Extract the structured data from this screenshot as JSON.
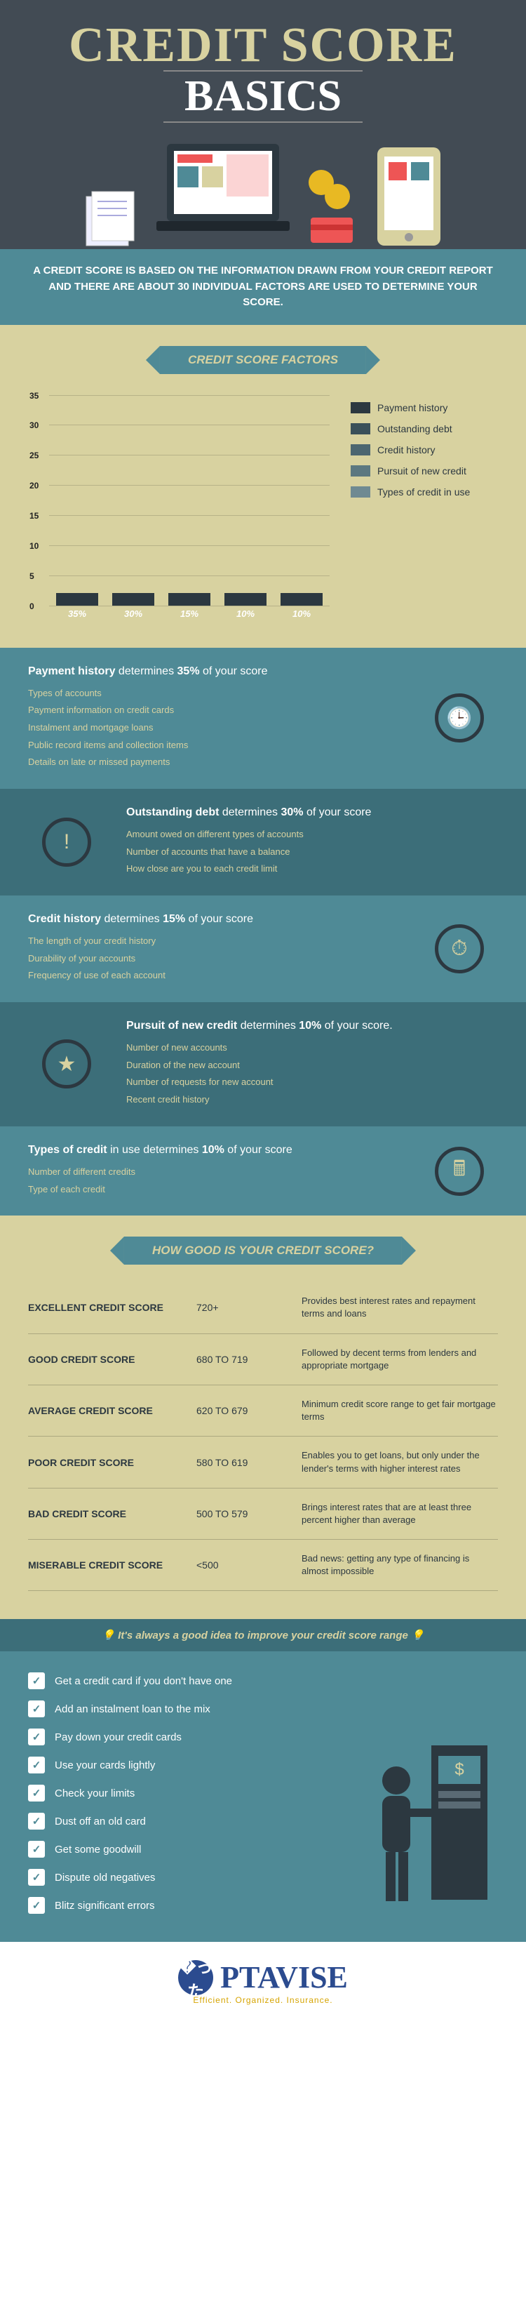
{
  "header": {
    "title1": "CREDIT SCORE",
    "title2": "BASICS"
  },
  "intro": "A CREDIT SCORE IS BASED ON THE INFORMATION DRAWN FROM YOUR CREDIT REPORT AND THERE ARE ABOUT 30 INDIVIDUAL FACTORS ARE USED TO DETERMINE YOUR SCORE.",
  "colors": {
    "bg_dark": "#424b54",
    "teal": "#4f8a96",
    "teal_dark": "#3c6e79",
    "khaki": "#d8d2a0",
    "bar_top": "#2c3840",
    "bar_body": "#2f4a52"
  },
  "chart": {
    "title": "CREDIT SCORE FACTORS",
    "type": "bar",
    "ylim": [
      0,
      35
    ],
    "ytick_step": 5,
    "yticks": [
      "0",
      "5",
      "10",
      "15",
      "20",
      "25",
      "30",
      "35"
    ],
    "values": [
      35,
      30,
      15,
      10,
      10
    ],
    "labels": [
      "35%",
      "30%",
      "15%",
      "10%",
      "10%"
    ],
    "legend": [
      "Payment history",
      "Outstanding debt",
      "Credit history",
      "Pursuit of new credit",
      "Types of credit in use"
    ],
    "legend_colors": [
      "#2c3840",
      "#3a5059",
      "#4c6670",
      "#5c7880",
      "#6f8a92"
    ]
  },
  "factors": [
    {
      "side": "right",
      "icon": "🕒",
      "head_a": "Payment history",
      "head_b": " determines ",
      "head_c": "35%",
      "head_d": " of your score",
      "items": [
        "Types of accounts",
        "Payment information on credit cards",
        "Instalment and mortgage loans",
        "Public record items and collection items",
        "Details on late or missed payments"
      ]
    },
    {
      "side": "left",
      "alt": true,
      "icon": "!",
      "head_a": "Outstanding debt",
      "head_b": " determines ",
      "head_c": "30%",
      "head_d": " of your score",
      "items": [
        "Amount owed on different types of accounts",
        "Number of accounts that have a balance",
        "How close are you to each credit limit"
      ]
    },
    {
      "side": "right",
      "icon": "⏱",
      "head_a": "Credit history",
      "head_b": " determines ",
      "head_c": "15%",
      "head_d": " of your score",
      "items": [
        "The length of your credit history",
        "Durability of your accounts",
        "Frequency of use of each account"
      ]
    },
    {
      "side": "left",
      "alt": true,
      "icon": "★",
      "head_a": "Pursuit of new credit",
      "head_b": " determines ",
      "head_c": "10%",
      "head_d": " of your score.",
      "items": [
        "Number of new accounts",
        "Duration of the new account",
        "Number of requests for new account",
        "Recent credit history"
      ]
    },
    {
      "side": "right",
      "icon": "🖩",
      "head_a": "Types of credit",
      "head_b": " in use determines ",
      "head_c": "10%",
      "head_d": " of your score",
      "items": [
        "Number of different credits",
        "Type of each credit"
      ]
    }
  ],
  "scoretable": {
    "title": "HOW GOOD IS YOUR CREDIT SCORE?",
    "rows": [
      {
        "label": "EXCELLENT CREDIT SCORE",
        "range": "720+",
        "desc": "Provides best interest rates and repayment terms and loans"
      },
      {
        "label": "GOOD CREDIT SCORE",
        "range": "680  TO 719",
        "desc": "Followed by decent terms from lenders and appropriate mortgage"
      },
      {
        "label": "AVERAGE CREDIT SCORE",
        "range": "620  TO 679",
        "desc": "Minimum credit score range to get fair mortgage terms"
      },
      {
        "label": "POOR CREDIT SCORE",
        "range": "580  TO 619",
        "desc": "Enables you to get loans, but only under the lender's terms with higher interest rates"
      },
      {
        "label": "BAD CREDIT SCORE",
        "range": "500  TO 579",
        "desc": "Brings interest rates that are at least three percent higher than average"
      },
      {
        "label": "MISERABLE CREDIT SCORE",
        "range": "<500",
        "desc": "Bad news: getting any type of financing is almost impossible"
      }
    ]
  },
  "tips": {
    "head": "💡 It's always a good idea to improve your credit score range 💡",
    "items": [
      "Get a credit card if you don't have one",
      "Add an instalment loan to the mix",
      "Pay down your credit cards",
      "Use your cards lightly",
      "Check your limits",
      "Dust off an old card",
      "Get some goodwill",
      "Dispute old negatives",
      "Blitz significant errors"
    ]
  },
  "footer": {
    "brand": "PTAVISE",
    "sub": "Efficient. Organized. Insurance."
  }
}
